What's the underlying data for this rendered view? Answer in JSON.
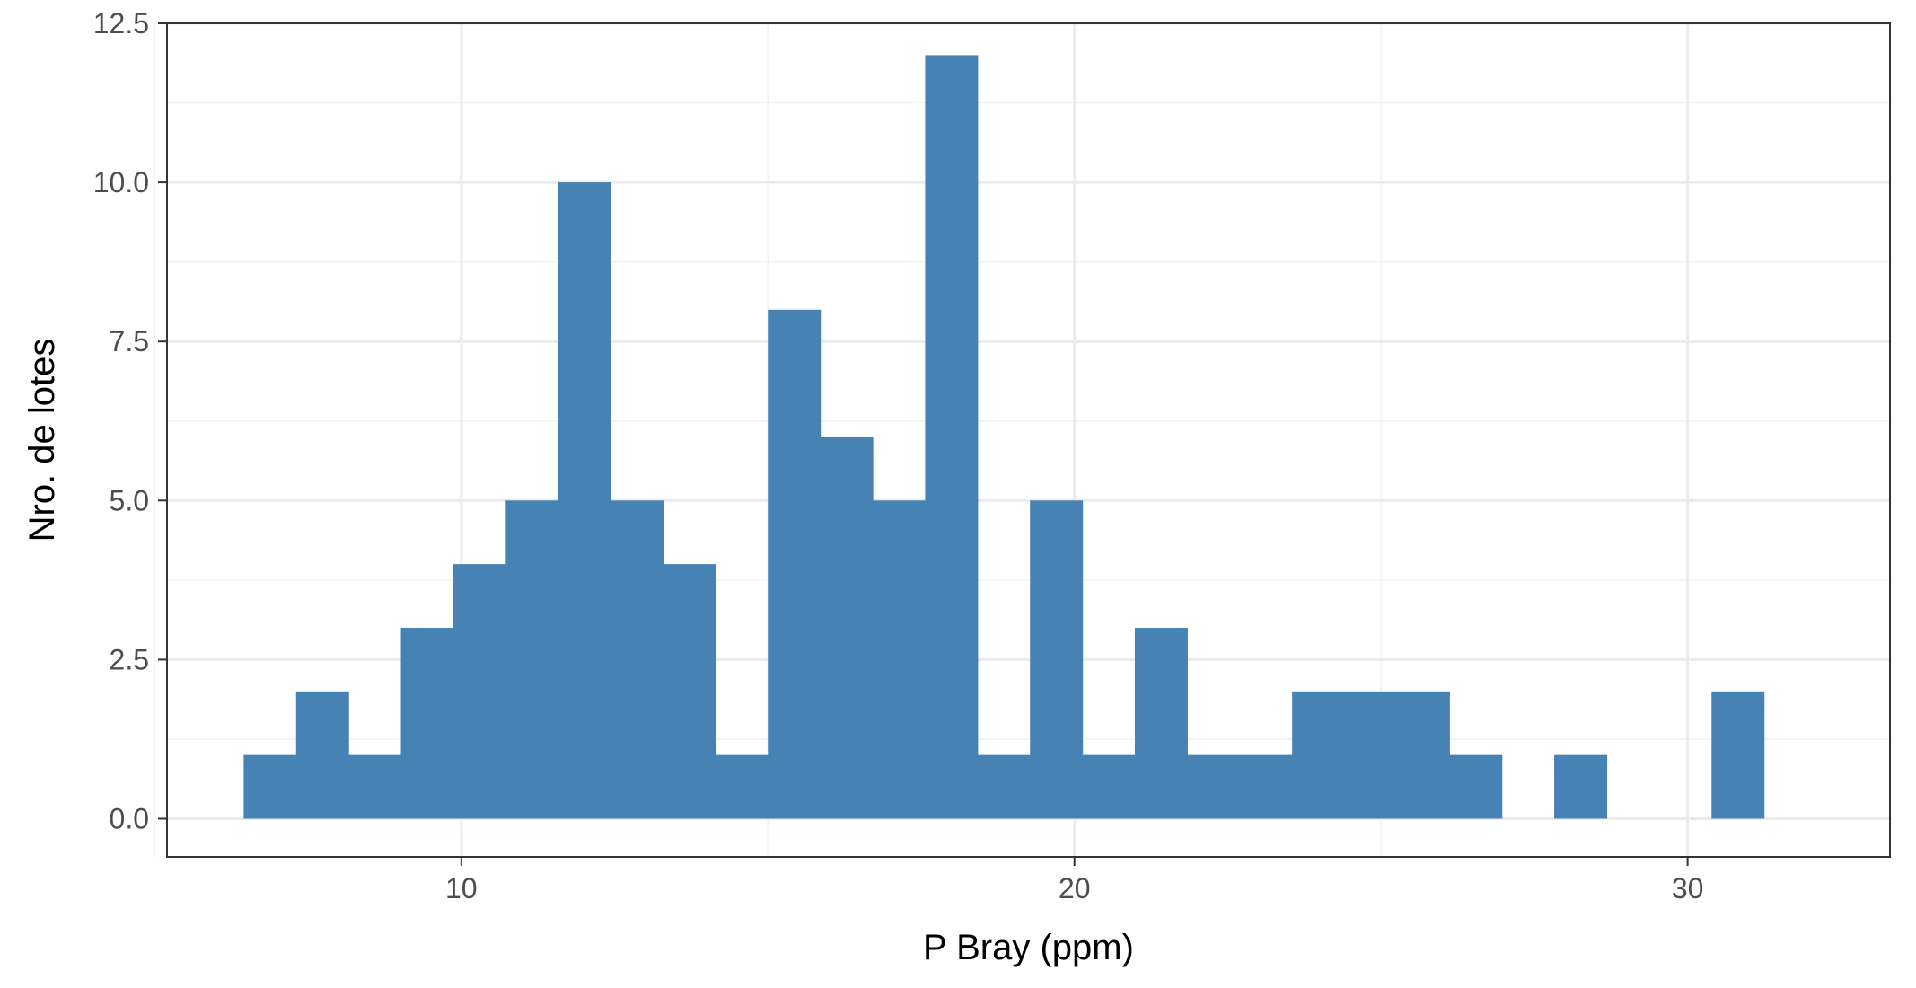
{
  "chart_data": {
    "type": "bar",
    "subtype": "histogram",
    "xlabel": "P Bray (ppm)",
    "ylabel": "Nro. de lotes",
    "xlim": [
      5.2,
      33.3
    ],
    "ylim": [
      -0.6,
      12.5
    ],
    "x_ticks": [
      10,
      20,
      30
    ],
    "x_tick_labels": [
      "10",
      "20",
      "30"
    ],
    "y_ticks": [
      0,
      2.5,
      5,
      7.5,
      10,
      12.5
    ],
    "y_tick_labels": [
      "0.0",
      "2.5",
      "5.0",
      "7.5",
      "10.0",
      "12.5"
    ],
    "x_minor_ticks": [
      5,
      15,
      25
    ],
    "y_minor_ticks": [
      1.25,
      3.75,
      6.25,
      8.75,
      11.25
    ],
    "bin_start": 6.45,
    "bin_width": 0.855,
    "values": [
      1,
      2,
      1,
      3,
      4,
      5,
      10,
      5,
      4,
      1,
      8,
      6,
      5,
      12,
      1,
      5,
      1,
      3,
      1,
      1,
      2,
      2,
      2,
      1,
      0,
      1,
      0,
      0,
      2
    ],
    "bar_color": "#4682B4",
    "grid": true,
    "grid_major_color": "#EBEBEB",
    "grid_minor_color": "#F2F2F2",
    "panel_border_color": "#333333",
    "theme": "bw"
  }
}
